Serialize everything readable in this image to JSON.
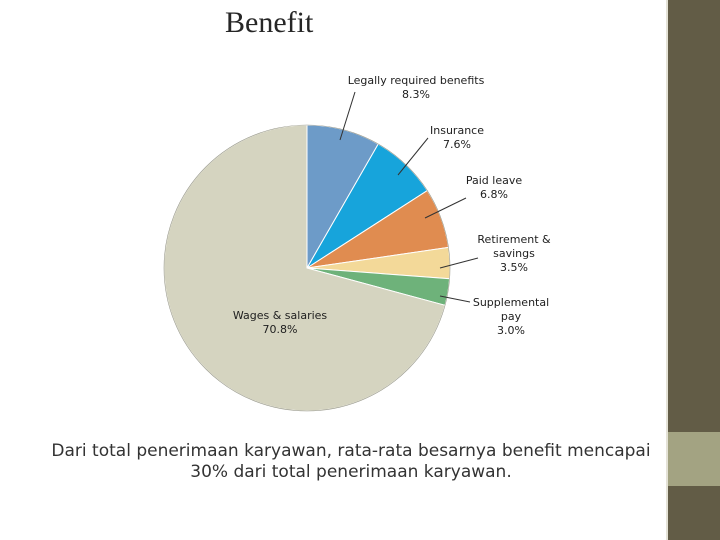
{
  "slide": {
    "title": "Benefit",
    "caption_line1": "Dari total penerimaan karyawan,  rata-rata besarnya benefit  mencapai",
    "caption_line2": "30% dari total penerimaan karyawan.",
    "accent_dark": "#625c46",
    "accent_light": "#a3a382"
  },
  "chart_data": {
    "type": "pie",
    "title": "",
    "slices": [
      {
        "label": "Legally required benefits",
        "label_lines": [
          "Legally required benefits"
        ],
        "value": 8.3,
        "value_text": "8.3%",
        "color": "#6d9bc8"
      },
      {
        "label": "Insurance",
        "label_lines": [
          "Insurance"
        ],
        "value": 7.6,
        "value_text": "7.6%",
        "color": "#17a4db"
      },
      {
        "label": "Paid leave",
        "label_lines": [
          "Paid leave"
        ],
        "value": 6.8,
        "value_text": "6.8%",
        "color": "#e08c50"
      },
      {
        "label": "Retirement & savings",
        "label_lines": [
          "Retirement &",
          "savings"
        ],
        "value": 3.5,
        "value_text": "3.5%",
        "color": "#f3d999"
      },
      {
        "label": "Supplemental pay",
        "label_lines": [
          "Supplemental",
          "pay"
        ],
        "value": 3.0,
        "value_text": "3.0%",
        "color": "#6eb27a"
      },
      {
        "label": "Wages & salaries",
        "label_lines": [
          "Wages & salaries"
        ],
        "value": 70.8,
        "value_text": "70.8%",
        "color": "#d5d4c0"
      }
    ]
  }
}
